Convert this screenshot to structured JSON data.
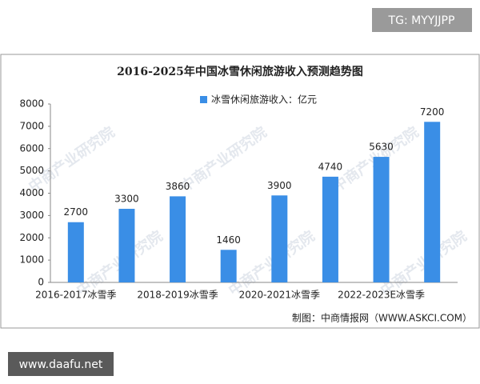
{
  "chart_data": {
    "type": "bar",
    "title": "2016-2025年中国冰雪休闲旅游收入预测趋势图",
    "legend_label": "冰雪休闲旅游收入：亿元",
    "categories": [
      "2016-2017冰雪季",
      null,
      "2018-2019冰雪季",
      null,
      "2020-2021冰雪季",
      null,
      "2022-2023E冰雪季",
      null
    ],
    "values": [
      2700,
      3300,
      3860,
      1460,
      3900,
      4740,
      5630,
      7200
    ],
    "color": "#3a8ee6",
    "ylim": [
      0,
      8000
    ],
    "yticks": [
      0,
      1000,
      2000,
      3000,
      4000,
      5000,
      6000,
      7000,
      8000
    ],
    "source": "制图：中商情报网（WWW.ASKCI.COM）",
    "watermark": "中商产业研究院"
  },
  "overlay": {
    "top_tag": "TG: MYYJJPP",
    "bottom_tag": "www.daafu.net"
  }
}
